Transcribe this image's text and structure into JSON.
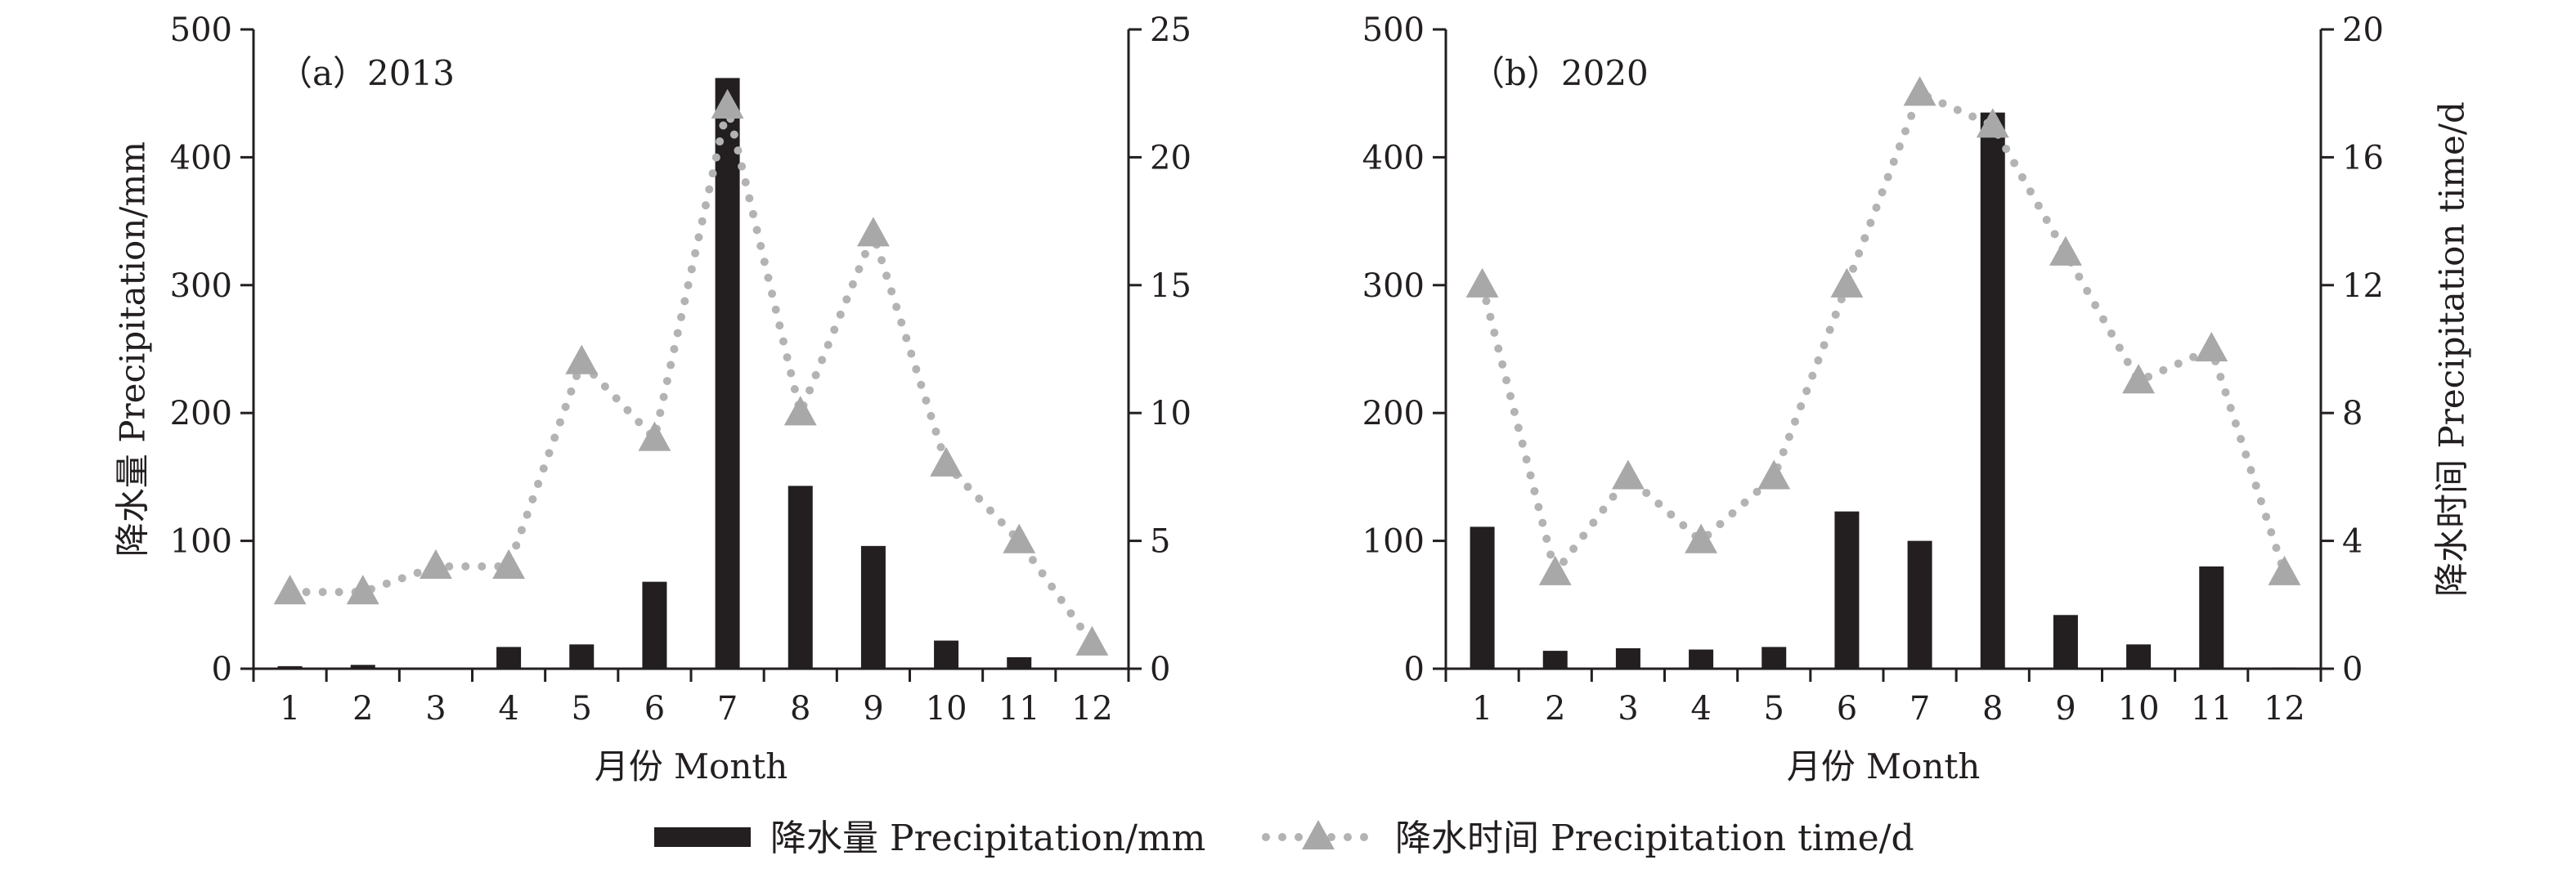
{
  "colors": {
    "bar": "#231f20",
    "line": "#b3b3b3",
    "marker": "#a8a8a8",
    "axis": "#231f20"
  },
  "legend": {
    "bar_label": "降水量 Precipitation/mm",
    "line_label": "降水时间 Precipitation time/d"
  },
  "chart_data": [
    {
      "type": "bar+line",
      "panel_label": "（a）2013",
      "xlabel": "月份 Month",
      "ylabel_left": "降水量 Precipitation/mm",
      "ylabel_right": "",
      "categories": [
        "1",
        "2",
        "3",
        "4",
        "5",
        "6",
        "7",
        "8",
        "9",
        "10",
        "11",
        "12"
      ],
      "ylim_left": [
        0,
        500
      ],
      "yticks_left": [
        0,
        100,
        200,
        300,
        400,
        500
      ],
      "ylim_right": [
        0,
        25
      ],
      "yticks_right": [
        0,
        5,
        10,
        15,
        20,
        25
      ],
      "series": [
        {
          "name": "降水量 Precipitation/mm",
          "kind": "bar",
          "axis": "left",
          "values": [
            2,
            3,
            0,
            17,
            19,
            68,
            462,
            143,
            96,
            22,
            9,
            0
          ]
        },
        {
          "name": "降水时间 Precipitation time/d",
          "kind": "line",
          "axis": "right",
          "values": [
            3,
            3,
            4,
            4,
            12,
            9,
            22,
            10,
            17,
            8,
            5,
            1
          ]
        }
      ],
      "grid": false
    },
    {
      "type": "bar+line",
      "panel_label": "（b）2020",
      "xlabel": "月份 Month",
      "ylabel_left": "",
      "ylabel_right": "降水时间 Precipitation time/d",
      "categories": [
        "1",
        "2",
        "3",
        "4",
        "5",
        "6",
        "7",
        "8",
        "9",
        "10",
        "11",
        "12"
      ],
      "ylim_left": [
        0,
        500
      ],
      "yticks_left": [
        0,
        100,
        200,
        300,
        400,
        500
      ],
      "ylim_right": [
        0,
        20
      ],
      "yticks_right": [
        0,
        4,
        8,
        12,
        16,
        20
      ],
      "series": [
        {
          "name": "降水量 Precipitation/mm",
          "kind": "bar",
          "axis": "left",
          "values": [
            111,
            14,
            16,
            15,
            17,
            123,
            100,
            435,
            42,
            19,
            80,
            1
          ]
        },
        {
          "name": "降水时间 Precipitation time/d",
          "kind": "line",
          "axis": "right",
          "values": [
            12,
            3,
            6,
            4,
            6,
            12,
            18,
            17,
            13,
            9,
            10,
            3
          ]
        }
      ],
      "grid": false
    }
  ]
}
